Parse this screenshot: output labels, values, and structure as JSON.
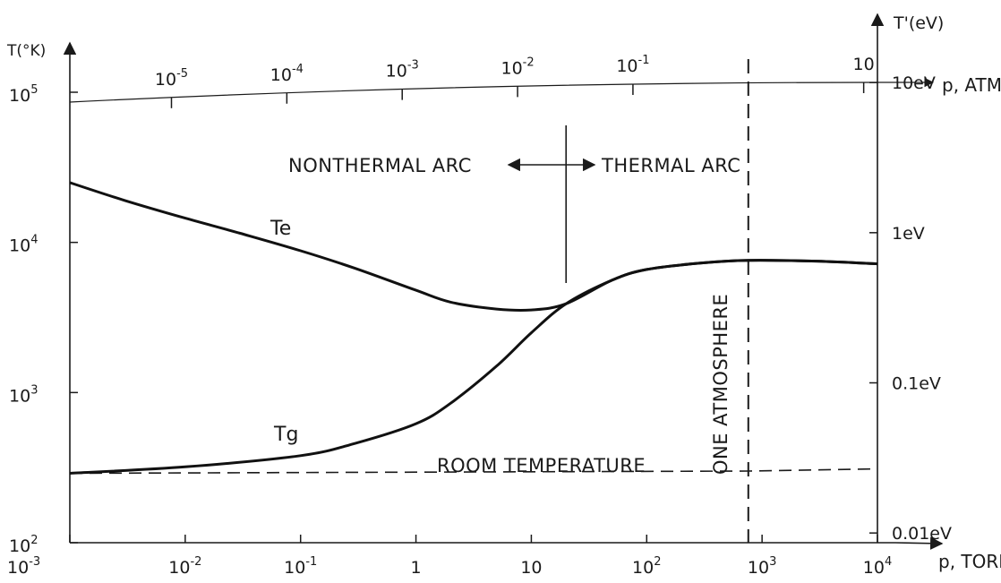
{
  "chart_data": {
    "type": "line",
    "x_scale": "log",
    "y_scale": "log",
    "xlim": [
      0.001,
      10000
    ],
    "ylim": [
      100,
      100000
    ],
    "xlabel": "p, TORR",
    "ylabel": "T(°K)",
    "top_axis_label": "p, ATM",
    "right_axis_label": "T'(eV)",
    "grid": false,
    "x_ticks": [
      {
        "value": 0.001,
        "mantissa": "10",
        "exp": "-3"
      },
      {
        "value": 0.01,
        "mantissa": "10",
        "exp": "-2"
      },
      {
        "value": 0.1,
        "mantissa": "10",
        "exp": "-1"
      },
      {
        "value": 1,
        "mantissa": "1",
        "exp": ""
      },
      {
        "value": 10,
        "mantissa": "10",
        "exp": ""
      },
      {
        "value": 100,
        "mantissa": "10",
        "exp": "2"
      },
      {
        "value": 1000,
        "mantissa": "10",
        "exp": "3"
      },
      {
        "value": 10000,
        "mantissa": "10",
        "exp": "4"
      }
    ],
    "y_ticks": [
      {
        "value": 100,
        "mantissa": "10",
        "exp": "2"
      },
      {
        "value": 1000,
        "mantissa": "10",
        "exp": "3"
      },
      {
        "value": 10000,
        "mantissa": "10",
        "exp": "4"
      },
      {
        "value": 100000,
        "mantissa": "10",
        "exp": "5"
      }
    ],
    "top_ticks": [
      {
        "atm": 1e-05,
        "mantissa": "10",
        "exp": "-5"
      },
      {
        "atm": 0.0001,
        "mantissa": "10",
        "exp": "-4"
      },
      {
        "atm": 0.001,
        "mantissa": "10",
        "exp": "-3"
      },
      {
        "atm": 0.01,
        "mantissa": "10",
        "exp": "-2"
      },
      {
        "atm": 0.1,
        "mantissa": "10",
        "exp": "-1"
      },
      {
        "atm": 10,
        "mantissa": "10",
        "exp": ""
      }
    ],
    "right_ticks": [
      {
        "ev": 10,
        "label": "10eV"
      },
      {
        "ev": 1,
        "label": "1eV"
      },
      {
        "ev": 0.1,
        "label": "0.1eV"
      },
      {
        "ev": 0.01,
        "label": "0.01eV"
      }
    ],
    "series": [
      {
        "name": "Te",
        "x": [
          0.001,
          0.003,
          0.01,
          0.03,
          0.1,
          0.3,
          1,
          2,
          5,
          10,
          20,
          50,
          100,
          300,
          760,
          3000,
          10000
        ],
        "y": [
          25000,
          19000,
          14500,
          11500,
          8800,
          6700,
          4800,
          4000,
          3600,
          3550,
          3900,
          5600,
          6600,
          7300,
          7600,
          7500,
          7200
        ]
      },
      {
        "name": "Tg",
        "x": [
          0.001,
          0.01,
          0.1,
          0.3,
          1,
          2,
          5,
          10,
          20,
          50,
          100,
          300,
          760,
          3000,
          10000
        ],
        "y": [
          290,
          320,
          380,
          460,
          620,
          850,
          1500,
          2500,
          3900,
          5600,
          6600,
          7300,
          7600,
          7500,
          7200
        ]
      }
    ],
    "reference_lines": {
      "one_atmosphere": {
        "x": 760,
        "label": "ONE ATMOSPHERE"
      },
      "room_temperature": {
        "x": [
          0.001,
          760,
          10000
        ],
        "y": [
          290,
          300,
          310
        ],
        "label": "ROOM TEMPERATURE"
      },
      "arc_divider": {
        "x": 20
      }
    },
    "annotations": {
      "nonthermal": "NONTHERMAL ARC",
      "thermal": "THERMAL ARC"
    }
  }
}
